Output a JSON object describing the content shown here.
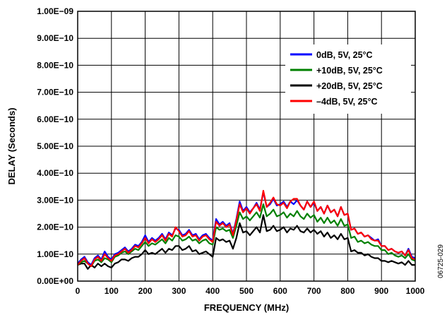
{
  "figure_id": "06725-029",
  "chart_data": {
    "type": "line",
    "title": "",
    "xlabel": "FREQUENCY (MHz)",
    "ylabel": "DELAY (Seconds)",
    "xlim": [
      0,
      1000
    ],
    "ylim": [
      0,
      1e-09
    ],
    "x_ticks": [
      0,
      100,
      200,
      300,
      400,
      500,
      600,
      700,
      800,
      900,
      1000
    ],
    "x_tick_labels": [
      "0",
      "100",
      "200",
      "300",
      "400",
      "500",
      "600",
      "700",
      "800",
      "900",
      "1000"
    ],
    "y_ticks": [
      0,
      1e-10,
      2e-10,
      3e-10,
      4e-10,
      5e-10,
      6e-10,
      7e-10,
      8e-10,
      9e-10,
      1e-09
    ],
    "y_tick_labels": [
      "0.00E+00",
      "1.00E−10",
      "2.00E−10",
      "3.00E−10",
      "4.00E−10",
      "5.00E−10",
      "6.00E−10",
      "7.00E−10",
      "8.00E−10",
      "9.00E−10",
      "1.00E−09"
    ],
    "grid": true,
    "legend_position": "top-right",
    "series": [
      {
        "name": "0dB, 5V, 25°C",
        "color": "#0000ff",
        "x": [
          0,
          10,
          20,
          30,
          40,
          50,
          60,
          70,
          80,
          90,
          100,
          110,
          120,
          130,
          140,
          150,
          160,
          170,
          180,
          190,
          200,
          210,
          220,
          230,
          240,
          250,
          260,
          270,
          280,
          290,
          300,
          310,
          320,
          330,
          340,
          350,
          360,
          370,
          380,
          390,
          400,
          410,
          420,
          430,
          440,
          450,
          460,
          470,
          480,
          490,
          500,
          510,
          520,
          530,
          540,
          550,
          560,
          570,
          580,
          590,
          600,
          610,
          620,
          630,
          640,
          650,
          660,
          670,
          680,
          690,
          700,
          710,
          720,
          730,
          740,
          750,
          760,
          770,
          780,
          790,
          800,
          810,
          820,
          830,
          840,
          850,
          860,
          870,
          880,
          890,
          900,
          910,
          920,
          930,
          940,
          950,
          960,
          970,
          980,
          990,
          1000
        ],
        "values": [
          6.5e-11,
          8e-11,
          9e-11,
          7e-11,
          6e-11,
          8.5e-11,
          9.5e-11,
          8e-11,
          1.1e-10,
          9e-11,
          8e-11,
          1e-10,
          1.05e-10,
          1.15e-10,
          1.25e-10,
          1.1e-10,
          1.2e-10,
          1.35e-10,
          1.3e-10,
          1.45e-10,
          1.7e-10,
          1.45e-10,
          1.6e-10,
          1.5e-10,
          1.6e-10,
          1.75e-10,
          1.55e-10,
          1.8e-10,
          1.7e-10,
          1.95e-10,
          1.9e-10,
          1.7e-10,
          1.75e-10,
          1.9e-10,
          1.7e-10,
          1.75e-10,
          1.55e-10,
          1.7e-10,
          1.75e-10,
          1.6e-10,
          1.5e-10,
          2.3e-10,
          2.1e-10,
          2.2e-10,
          2.05e-10,
          2.15e-10,
          1.75e-10,
          2.3e-10,
          2.95e-10,
          2.6e-10,
          2.75e-10,
          2.55e-10,
          2.7e-10,
          2.9e-10,
          2.65e-10,
          3.3e-10,
          2.75e-10,
          2.85e-10,
          3.05e-10,
          2.8e-10,
          2.85e-10,
          2.95e-10,
          2.75e-10,
          2.95e-10,
          2.85e-10,
          3e-10,
          2.8e-10,
          2.65e-10,
          2.95e-10,
          2.75e-10,
          2.9e-10,
          2.6e-10,
          2.75e-10,
          2.5e-10,
          2.8e-10,
          2.55e-10,
          2.65e-10,
          2.4e-10,
          2.75e-10,
          2.45e-10,
          2.5e-10,
          1.9e-10,
          1.95e-10,
          1.75e-10,
          1.8e-10,
          1.65e-10,
          1.7e-10,
          1.6e-10,
          1.5e-10,
          1.55e-10,
          1.3e-10,
          1.3e-10,
          1.15e-10,
          1.2e-10,
          1.1e-10,
          1.05e-10,
          1.1e-10,
          9.5e-11,
          1.2e-10,
          9e-11,
          8.5e-11
        ]
      },
      {
        "name": "+10dB, 5V, 25°C",
        "color": "#008000",
        "x": [
          0,
          10,
          20,
          30,
          40,
          50,
          60,
          70,
          80,
          90,
          100,
          110,
          120,
          130,
          140,
          150,
          160,
          170,
          180,
          190,
          200,
          210,
          220,
          230,
          240,
          250,
          260,
          270,
          280,
          290,
          300,
          310,
          320,
          330,
          340,
          350,
          360,
          370,
          380,
          390,
          400,
          410,
          420,
          430,
          440,
          450,
          460,
          470,
          480,
          490,
          500,
          510,
          520,
          530,
          540,
          550,
          560,
          570,
          580,
          590,
          600,
          610,
          620,
          630,
          640,
          650,
          660,
          670,
          680,
          690,
          700,
          710,
          720,
          730,
          740,
          750,
          760,
          770,
          780,
          790,
          800,
          810,
          820,
          830,
          840,
          850,
          860,
          870,
          880,
          890,
          900,
          910,
          920,
          930,
          940,
          950,
          960,
          970,
          980,
          990,
          1000
        ],
        "values": [
          6e-11,
          7e-11,
          7.5e-11,
          6.5e-11,
          5.5e-11,
          7.5e-11,
          8e-11,
          7e-11,
          8.5e-11,
          8e-11,
          7e-11,
          9e-11,
          9.5e-11,
          1.05e-10,
          1.1e-10,
          1e-10,
          1.1e-10,
          1.2e-10,
          1.15e-10,
          1.3e-10,
          1.45e-10,
          1.3e-10,
          1.4e-10,
          1.35e-10,
          1.45e-10,
          1.55e-10,
          1.4e-10,
          1.6e-10,
          1.5e-10,
          1.7e-10,
          1.65e-10,
          1.5e-10,
          1.55e-10,
          1.65e-10,
          1.5e-10,
          1.55e-10,
          1.4e-10,
          1.5e-10,
          1.55e-10,
          1.4e-10,
          1.35e-10,
          2e-10,
          1.9e-10,
          1.95e-10,
          1.85e-10,
          1.9e-10,
          1.6e-10,
          2.05e-10,
          2.55e-10,
          2.3e-10,
          2.4e-10,
          2.25e-10,
          2.4e-10,
          2.55e-10,
          2.35e-10,
          2.85e-10,
          2.4e-10,
          2.5e-10,
          2.65e-10,
          2.4e-10,
          2.45e-10,
          2.55e-10,
          2.35e-10,
          2.5e-10,
          2.4e-10,
          2.6e-10,
          2.4e-10,
          2.3e-10,
          2.5e-10,
          2.35e-10,
          2.45e-10,
          2.2e-10,
          2.35e-10,
          2.15e-10,
          2.35e-10,
          2.15e-10,
          2.25e-10,
          2.05e-10,
          2.3e-10,
          2.05e-10,
          2.1e-10,
          1.6e-10,
          1.65e-10,
          1.45e-10,
          1.5e-10,
          1.4e-10,
          1.45e-10,
          1.35e-10,
          1.3e-10,
          1.3e-10,
          1.15e-10,
          1.15e-10,
          1e-10,
          1.05e-10,
          9.5e-11,
          9e-11,
          9.5e-11,
          8.5e-11,
          1e-10,
          8e-11,
          7.5e-11
        ]
      },
      {
        "name": "+20dB, 5V, 25°C",
        "color": "#000000",
        "x": [
          0,
          10,
          20,
          30,
          40,
          50,
          60,
          70,
          80,
          90,
          100,
          110,
          120,
          130,
          140,
          150,
          160,
          170,
          180,
          190,
          200,
          210,
          220,
          230,
          240,
          250,
          260,
          270,
          280,
          290,
          300,
          310,
          320,
          330,
          340,
          350,
          360,
          370,
          380,
          390,
          400,
          410,
          420,
          430,
          440,
          450,
          460,
          470,
          480,
          490,
          500,
          510,
          520,
          530,
          540,
          550,
          560,
          570,
          580,
          590,
          600,
          610,
          620,
          630,
          640,
          650,
          660,
          670,
          680,
          690,
          700,
          710,
          720,
          730,
          740,
          750,
          760,
          770,
          780,
          790,
          800,
          810,
          820,
          830,
          840,
          850,
          860,
          870,
          880,
          890,
          900,
          910,
          920,
          930,
          940,
          950,
          960,
          970,
          980,
          990,
          1000
        ],
        "values": [
          6e-11,
          6.5e-11,
          6.5e-11,
          4.5e-11,
          6e-11,
          5e-11,
          6.5e-11,
          5.5e-11,
          6.5e-11,
          5.5e-11,
          5e-11,
          6.5e-11,
          7e-11,
          8e-11,
          8e-11,
          7.5e-11,
          8.5e-11,
          9e-11,
          9e-11,
          1e-10,
          1.15e-10,
          1e-10,
          1.05e-10,
          1e-10,
          1.1e-10,
          1.2e-10,
          1.05e-10,
          1.2e-10,
          1.15e-10,
          1.3e-10,
          1.3e-10,
          1.15e-10,
          1.2e-10,
          1.3e-10,
          1.1e-10,
          1.15e-10,
          1e-10,
          1.05e-10,
          1.1e-10,
          1e-10,
          9e-11,
          1.6e-10,
          1.5e-10,
          1.55e-10,
          1.45e-10,
          1.5e-10,
          1.2e-10,
          1.6e-10,
          2.15e-10,
          1.8e-10,
          1.85e-10,
          1.7e-10,
          1.85e-10,
          2e-10,
          1.8e-10,
          2.45e-10,
          1.85e-10,
          1.9e-10,
          2.05e-10,
          1.85e-10,
          1.9e-10,
          2e-10,
          1.8e-10,
          1.95e-10,
          1.9e-10,
          2.05e-10,
          1.85e-10,
          1.8e-10,
          1.95e-10,
          1.8e-10,
          1.9e-10,
          1.75e-10,
          1.85e-10,
          1.65e-10,
          1.8e-10,
          1.6e-10,
          1.7e-10,
          1.55e-10,
          1.75e-10,
          1.55e-10,
          1.6e-10,
          1.1e-10,
          1.15e-10,
          1.05e-10,
          1.05e-10,
          9.5e-11,
          1e-10,
          9e-11,
          8.5e-11,
          8.5e-11,
          7.5e-11,
          7.5e-11,
          7e-11,
          7.5e-11,
          7e-11,
          6.5e-11,
          7e-11,
          6e-11,
          7.5e-11,
          6e-11,
          6e-11
        ]
      },
      {
        "name": "–4dB, 5V, 25°C",
        "color": "#ff0000",
        "x": [
          0,
          10,
          20,
          30,
          40,
          50,
          60,
          70,
          80,
          90,
          100,
          110,
          120,
          130,
          140,
          150,
          160,
          170,
          180,
          190,
          200,
          210,
          220,
          230,
          240,
          250,
          260,
          270,
          280,
          290,
          300,
          310,
          320,
          330,
          340,
          350,
          360,
          370,
          380,
          390,
          400,
          410,
          420,
          430,
          440,
          450,
          460,
          470,
          480,
          490,
          500,
          510,
          520,
          530,
          540,
          550,
          560,
          570,
          580,
          590,
          600,
          610,
          620,
          630,
          640,
          650,
          660,
          670,
          680,
          690,
          700,
          710,
          720,
          730,
          740,
          750,
          760,
          770,
          780,
          790,
          800,
          810,
          820,
          830,
          840,
          850,
          860,
          870,
          880,
          890,
          900,
          910,
          920,
          930,
          940,
          950,
          960,
          970,
          980,
          990,
          1000
        ],
        "values": [
          6e-11,
          7.5e-11,
          8.5e-11,
          6.5e-11,
          5.5e-11,
          8e-11,
          9e-11,
          7.5e-11,
          1e-10,
          8.5e-11,
          7.5e-11,
          9.5e-11,
          1e-10,
          1.1e-10,
          1.2e-10,
          1.05e-10,
          1.15e-10,
          1.3e-10,
          1.25e-10,
          1.4e-10,
          1.6e-10,
          1.4e-10,
          1.55e-10,
          1.45e-10,
          1.55e-10,
          1.7e-10,
          1.5e-10,
          1.75e-10,
          1.65e-10,
          2e-10,
          1.85e-10,
          1.65e-10,
          1.7e-10,
          1.85e-10,
          1.65e-10,
          1.7e-10,
          1.5e-10,
          1.65e-10,
          1.7e-10,
          1.55e-10,
          1.45e-10,
          2.2e-10,
          2.05e-10,
          2.15e-10,
          2e-10,
          2.1e-10,
          1.7e-10,
          2.25e-10,
          2.85e-10,
          2.55e-10,
          2.7e-10,
          2.5e-10,
          2.7e-10,
          2.85e-10,
          2.6e-10,
          3.35e-10,
          2.75e-10,
          2.9e-10,
          3.1e-10,
          2.85e-10,
          2.8e-10,
          2.9e-10,
          2.7e-10,
          2.95e-10,
          3.05e-10,
          3.05e-10,
          2.8e-10,
          2.65e-10,
          2.95e-10,
          2.75e-10,
          2.95e-10,
          2.6e-10,
          2.75e-10,
          2.5e-10,
          2.8e-10,
          2.55e-10,
          2.65e-10,
          2.4e-10,
          2.75e-10,
          2.45e-10,
          2.5e-10,
          1.9e-10,
          1.95e-10,
          1.75e-10,
          1.8e-10,
          1.65e-10,
          1.7e-10,
          1.55e-10,
          1.5e-10,
          1.5e-10,
          1.3e-10,
          1.3e-10,
          1.15e-10,
          1.2e-10,
          1.1e-10,
          1.05e-10,
          1.1e-10,
          9.5e-11,
          1.15e-10,
          8.5e-11,
          8e-11
        ]
      }
    ]
  }
}
